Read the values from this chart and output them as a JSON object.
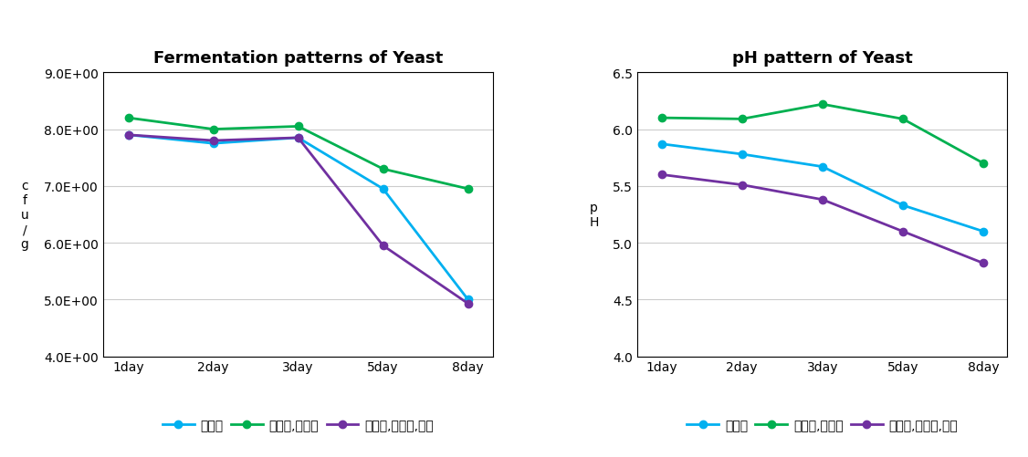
{
  "left_chart": {
    "title": "Fermentation patterns of Yeast",
    "ylabel_lines": [
      "c",
      "f",
      "u",
      "/",
      "g"
    ],
    "xticklabels": [
      "1day",
      "2day",
      "3day",
      "5day",
      "8day"
    ],
    "ylim": [
      4.0,
      9.0
    ],
    "yticks": [
      4.0,
      5.0,
      6.0,
      7.0,
      8.0,
      9.0
    ],
    "ytick_labels": [
      "4.0E+00",
      "5.0E+00",
      "6.0E+00",
      "7.0E+00",
      "8.0E+00",
      "9.0E+00"
    ],
    "series": [
      {
        "label": "대두박",
        "color": "#00b0f0",
        "marker": "o",
        "values": [
          7.9,
          7.75,
          7.85,
          6.95,
          5.0
        ]
      },
      {
        "label": "대두박,구명초",
        "color": "#00b050",
        "marker": "o",
        "values": [
          8.2,
          8.0,
          8.05,
          7.3,
          6.95
        ]
      },
      {
        "label": "대두박,구명초,지황",
        "color": "#7030a0",
        "marker": "o",
        "values": [
          7.9,
          7.8,
          7.85,
          5.95,
          4.93
        ]
      }
    ]
  },
  "right_chart": {
    "title": "pH pattern of Yeast",
    "ylabel_lines": [
      "p",
      "H"
    ],
    "xticklabels": [
      "1day",
      "2day",
      "3day",
      "5day",
      "8day"
    ],
    "ylim": [
      4.0,
      6.5
    ],
    "yticks": [
      4.0,
      4.5,
      5.0,
      5.5,
      6.0,
      6.5
    ],
    "ytick_labels": [
      "4.0",
      "4.5",
      "5.0",
      "5.5",
      "6.0",
      "6.5"
    ],
    "series": [
      {
        "label": "대두박",
        "color": "#00b0f0",
        "marker": "o",
        "values": [
          5.87,
          5.78,
          5.67,
          5.33,
          5.1
        ]
      },
      {
        "label": "대두박,구명초",
        "color": "#00b050",
        "marker": "o",
        "values": [
          6.1,
          6.09,
          6.22,
          6.09,
          5.7
        ]
      },
      {
        "label": "대두박,구명초,지황",
        "color": "#7030a0",
        "marker": "o",
        "values": [
          5.6,
          5.51,
          5.38,
          5.1,
          4.82
        ]
      }
    ]
  },
  "background_color": "#ffffff",
  "title_fontsize": 13,
  "tick_fontsize": 10,
  "legend_fontsize": 10,
  "line_width": 2.0,
  "marker_size": 6
}
